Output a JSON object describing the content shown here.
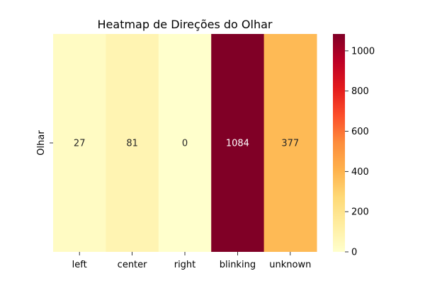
{
  "chart_data": {
    "type": "heatmap",
    "title": "Heatmap de Direções do Olhar",
    "xlabel": "",
    "ylabel": "",
    "x_categories": [
      "left",
      "center",
      "right",
      "blinking",
      "unknown"
    ],
    "y_categories": [
      "Olhar"
    ],
    "values": [
      [
        27,
        81,
        0,
        1084,
        377
      ]
    ],
    "annotations": [
      "27",
      "81",
      "0",
      "1084",
      "377"
    ],
    "colormap": "YlOrRd",
    "colorbar": {
      "vmin": 0,
      "vmax": 1084,
      "ticks": [
        0,
        200,
        400,
        600,
        800,
        1000
      ],
      "tick_labels": [
        "0",
        "200",
        "400",
        "600",
        "800",
        "1000"
      ]
    },
    "grid": false
  }
}
